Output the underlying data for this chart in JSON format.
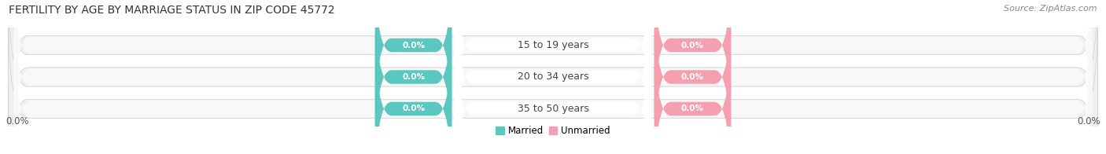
{
  "title": "FERTILITY BY AGE BY MARRIAGE STATUS IN ZIP CODE 45772",
  "source": "Source: ZipAtlas.com",
  "categories": [
    "15 to 19 years",
    "20 to 34 years",
    "35 to 50 years"
  ],
  "married_values": [
    0.0,
    0.0,
    0.0
  ],
  "unmarried_values": [
    0.0,
    0.0,
    0.0
  ],
  "married_color": "#5BC8C0",
  "unmarried_color": "#F4A0B0",
  "bar_bg_color": "#E8E8E8",
  "bar_bg_color2": "#F0F0F0",
  "bar_height": 0.6,
  "bar_gap": 0.15,
  "xlim_left": -100,
  "xlim_right": 100,
  "title_fontsize": 10,
  "source_fontsize": 8,
  "label_fontsize": 8.5,
  "category_fontsize": 9,
  "value_label_fontsize": 7.5,
  "bg_color": "#FFFFFF",
  "axis_label_left": "0.0%",
  "axis_label_right": "0.0%",
  "legend_married": "Married",
  "legend_unmarried": "Unmarried"
}
